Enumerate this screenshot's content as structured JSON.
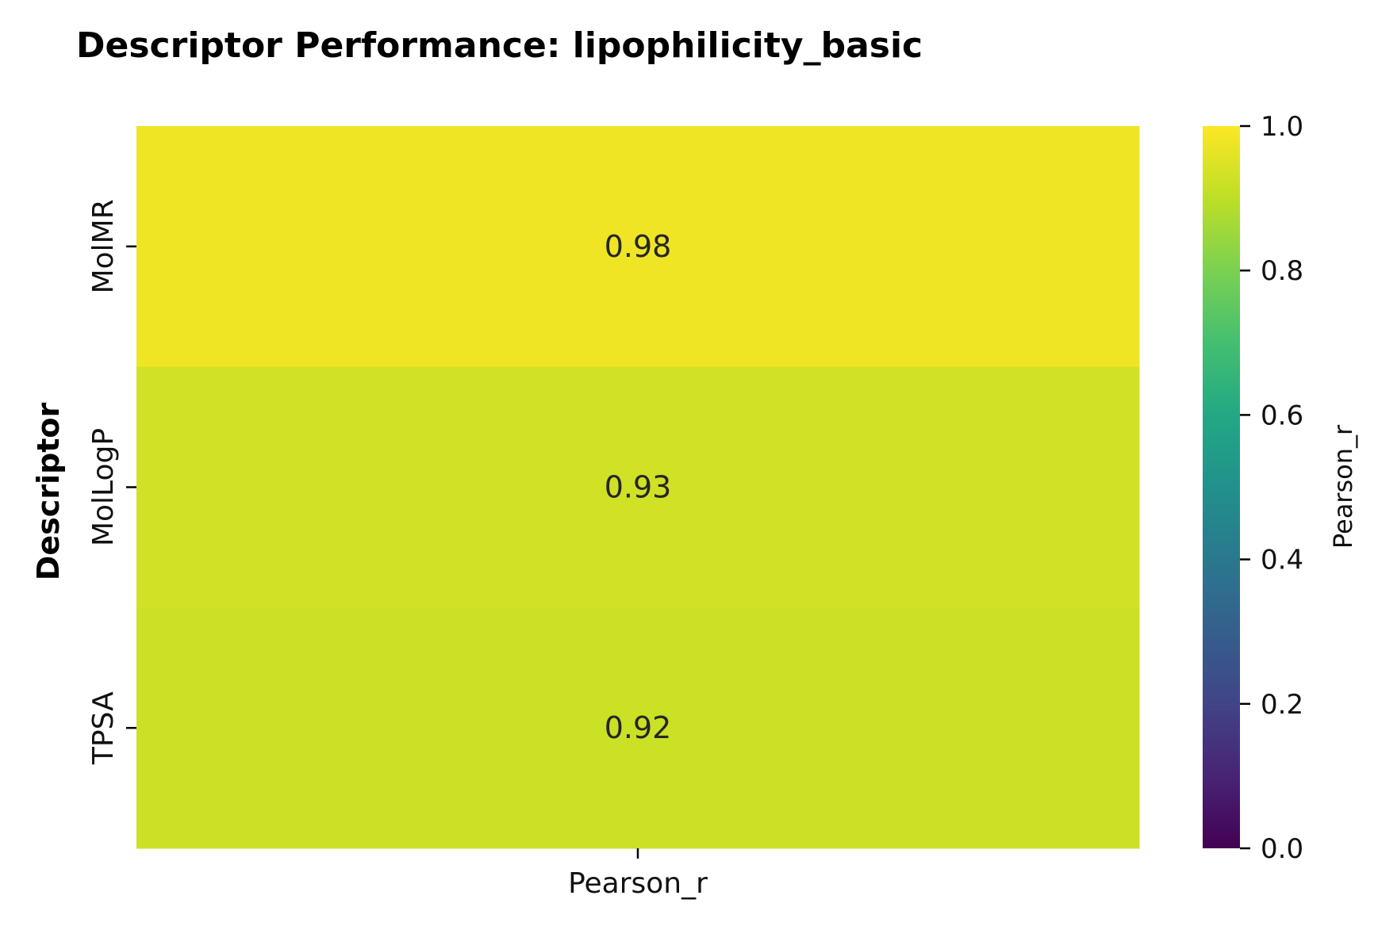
{
  "chart_data": {
    "type": "heatmap",
    "title": "Descriptor Performance: lipophilicity_basic",
    "ylabel": "Descriptor",
    "xlabel": "",
    "columns": [
      "Pearson_r"
    ],
    "rows": [
      "MolMR",
      "MolLogP",
      "TPSA"
    ],
    "values": [
      [
        0.98
      ],
      [
        0.93
      ],
      [
        0.92
      ]
    ],
    "cell_labels": [
      [
        "0.98"
      ],
      [
        "0.93"
      ],
      [
        "0.92"
      ]
    ],
    "colormap": "viridis",
    "colorbar": {
      "label": "Pearson_r",
      "range": [
        0.0,
        1.0
      ],
      "ticks": [
        0.0,
        0.2,
        0.4,
        0.6,
        0.8,
        1.0
      ],
      "tick_labels": [
        "0.0",
        "0.2",
        "0.4",
        "0.6",
        "0.8",
        "1.0"
      ]
    },
    "grid": false,
    "legend": "colorbar-right"
  }
}
